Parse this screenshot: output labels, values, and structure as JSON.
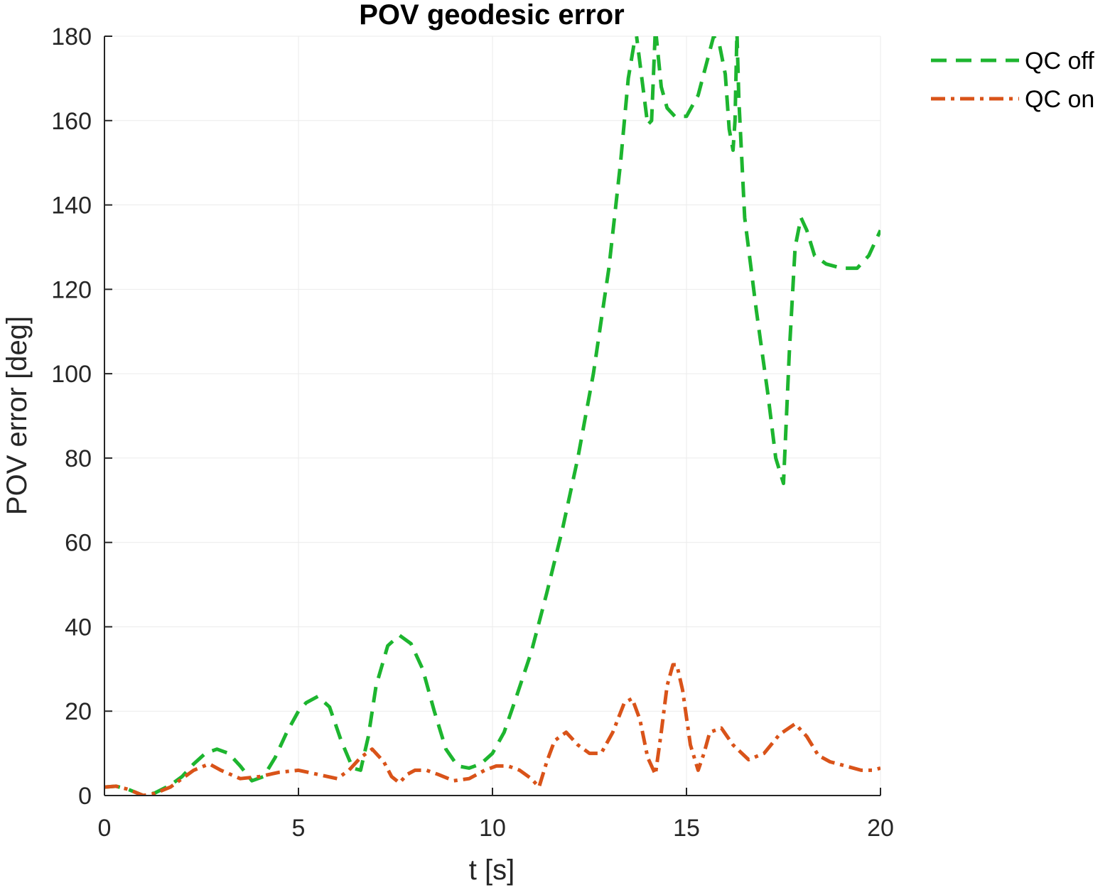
{
  "chart_data": {
    "type": "line",
    "title": "POV geodesic error",
    "xlabel": "t [s]",
    "ylabel": "POV error [deg]",
    "xlim": [
      0,
      20
    ],
    "ylim": [
      0,
      180
    ],
    "xticks": [
      "0",
      "5",
      "10",
      "15",
      "20"
    ],
    "yticks": [
      "0",
      "20",
      "40",
      "60",
      "80",
      "100",
      "120",
      "140",
      "160",
      "180"
    ],
    "grid": true,
    "legend_position": "outside-top-right",
    "series": [
      {
        "name": "QC off",
        "color": "#1db52f",
        "style": "dashed",
        "x": [
          0,
          0.3,
          0.6,
          1.0,
          1.3,
          1.7,
          2.0,
          2.3,
          2.6,
          2.9,
          3.2,
          3.5,
          3.8,
          4.1,
          4.4,
          4.7,
          5.0,
          5.2,
          5.5,
          5.8,
          6.1,
          6.4,
          6.6,
          6.8,
          7.0,
          7.3,
          7.6,
          7.9,
          8.2,
          8.5,
          8.8,
          9.1,
          9.4,
          9.7,
          10.0,
          10.3,
          10.6,
          11.0,
          11.4,
          11.8,
          12.2,
          12.6,
          13.0,
          13.3,
          13.5,
          13.7,
          13.85,
          14.0,
          14.1,
          14.2,
          14.35,
          14.5,
          14.7,
          15.0,
          15.3,
          15.5,
          15.7,
          15.85,
          16.0,
          16.1,
          16.2,
          16.25,
          16.3,
          16.35,
          16.5,
          16.8,
          17.1,
          17.3,
          17.5,
          17.65,
          17.8,
          17.95,
          18.1,
          18.3,
          18.6,
          19.0,
          19.4,
          19.7,
          20.0
        ],
        "values": [
          2,
          2.2,
          1.5,
          0,
          0.6,
          2.5,
          4.5,
          7.5,
          10,
          11,
          10,
          7,
          3.5,
          4.5,
          9,
          15,
          20,
          22,
          23.5,
          21,
          13,
          6.5,
          6,
          14,
          26,
          35.5,
          38,
          36,
          30,
          20,
          11,
          7,
          6.5,
          7.5,
          10,
          15,
          23,
          34,
          48,
          63,
          80,
          100,
          125,
          150,
          170,
          181,
          170,
          159,
          160,
          182,
          168,
          163,
          161,
          161,
          166,
          173,
          180,
          178,
          171,
          158,
          153,
          160,
          181,
          165,
          137,
          115,
          95,
          80,
          74,
          105,
          130,
          137,
          134,
          128,
          126,
          125,
          125,
          128,
          134
        ]
      },
      {
        "name": "QC on",
        "color": "#d95319",
        "style": "dash-dot",
        "x": [
          0,
          0.3,
          0.6,
          1.0,
          1.3,
          1.7,
          2.0,
          2.3,
          2.7,
          3.0,
          3.5,
          4.0,
          4.5,
          5.0,
          5.5,
          6.0,
          6.3,
          6.6,
          6.9,
          7.2,
          7.4,
          7.6,
          7.8,
          8.0,
          8.3,
          8.6,
          9.0,
          9.4,
          9.8,
          10.1,
          10.4,
          10.7,
          11.0,
          11.2,
          11.4,
          11.6,
          11.9,
          12.2,
          12.5,
          12.8,
          13.1,
          13.4,
          13.6,
          13.8,
          14.0,
          14.2,
          14.35,
          14.5,
          14.65,
          14.75,
          14.9,
          15.1,
          15.3,
          15.45,
          15.6,
          15.9,
          16.2,
          16.6,
          17.0,
          17.4,
          17.8,
          18.1,
          18.4,
          18.7,
          19.1,
          19.5,
          19.8,
          20.0
        ],
        "values": [
          2,
          2.2,
          1.5,
          0,
          0.5,
          2,
          4,
          6,
          7.5,
          6,
          4,
          4.5,
          5.5,
          6,
          5,
          4,
          6,
          9,
          11,
          8,
          4.5,
          3,
          5,
          6,
          6,
          5,
          3.5,
          4,
          6,
          7,
          7,
          6,
          4,
          2,
          8,
          13,
          15,
          12,
          10,
          10,
          15,
          22,
          23,
          18,
          9,
          5,
          15,
          26,
          31,
          31,
          25,
          12,
          6,
          10,
          15,
          16,
          12,
          8.5,
          10,
          14.5,
          17,
          14,
          9.5,
          8,
          7,
          6,
          6,
          6.5
        ]
      }
    ]
  }
}
